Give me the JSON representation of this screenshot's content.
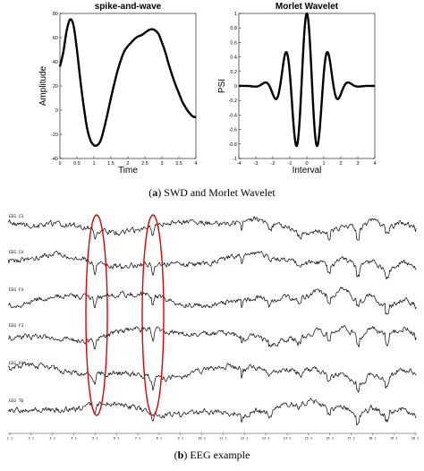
{
  "figure": {
    "caption_a": {
      "letter": "a",
      "text": "SWD and Morlet Wavelet"
    },
    "caption_b": {
      "letter": "b",
      "text": "EEG example"
    }
  },
  "chart_data": [
    {
      "type": "line",
      "title": "spike-and-wave",
      "xlabel": "Time",
      "ylabel": "Amplitude",
      "xlim": [
        0,
        4
      ],
      "ylim": [
        -40,
        80
      ],
      "xticks": [
        "0",
        "0.5",
        "1",
        "1.5",
        "2",
        "2.5",
        "3",
        "3.5",
        "4"
      ],
      "yticks": [
        "-40",
        "-20",
        "0",
        "20",
        "40",
        "60",
        "80"
      ],
      "grid": false,
      "series": [
        {
          "x": [
            0,
            0.1,
            0.2,
            0.3,
            0.4,
            0.5,
            0.6,
            0.7,
            0.8,
            0.9,
            1.0,
            1.1,
            1.2,
            1.3,
            1.4,
            1.5,
            1.6,
            1.7,
            1.8,
            1.9,
            2.0,
            2.1,
            2.2,
            2.3,
            2.4,
            2.5,
            2.6,
            2.7,
            2.8,
            2.9,
            3.0,
            3.1,
            3.2,
            3.3,
            3.4,
            3.5,
            3.6,
            3.7,
            3.8,
            3.9,
            4.0
          ],
          "y": [
            36,
            48,
            66,
            75,
            70,
            50,
            25,
            3,
            -15,
            -25,
            -29,
            -29,
            -25,
            -15,
            -3,
            10,
            22,
            33,
            42,
            49,
            53,
            56,
            59,
            61,
            62,
            64,
            66,
            67,
            66,
            63,
            56,
            48,
            38,
            29,
            21,
            14,
            7,
            2,
            -2,
            -5,
            -6
          ]
        }
      ]
    },
    {
      "type": "line",
      "title": "Morlet Wavelet",
      "xlabel": "Interval",
      "ylabel": "PSI",
      "xlim": [
        -4,
        4
      ],
      "ylim": [
        -1,
        1
      ],
      "xticks": [
        "-4",
        "-3",
        "-2",
        "-1",
        "0",
        "1",
        "2",
        "3",
        "4"
      ],
      "yticks": [
        "-1",
        "-0.8",
        "-0.6",
        "-0.4",
        "-0.2",
        "0",
        "0.2",
        "0.4",
        "0.6",
        "0.8",
        "1"
      ],
      "grid": false,
      "function": "exp(-x^2/2)*cos(5x)",
      "series": [
        {
          "x": [
            -4,
            -3.5,
            -3,
            -2.5,
            -2,
            -1.5,
            -1.25,
            -1,
            -0.8,
            -0.6,
            -0.4,
            -0.2,
            0,
            0.2,
            0.4,
            0.6,
            0.8,
            1,
            1.25,
            1.5,
            2,
            2.5,
            3,
            3.5,
            4
          ],
          "y": [
            0.0,
            0.0,
            -0.01,
            0.04,
            -0.11,
            0.11,
            0.46,
            0.17,
            -0.47,
            -0.83,
            -0.38,
            0.53,
            1.0,
            0.53,
            -0.38,
            -0.83,
            -0.47,
            0.17,
            0.46,
            0.11,
            -0.11,
            0.04,
            -0.01,
            0.0,
            0.0
          ]
        }
      ]
    },
    {
      "type": "line",
      "title": "",
      "channels": [
        "EEG C3",
        "EEG C4",
        "EEG F4",
        "EEG F3",
        "EEG P4",
        "EEG T6"
      ],
      "xticks": [
        "1 s",
        "2 s",
        "3 s",
        "4 s",
        "5 s",
        "6 s",
        "7 s",
        "8 s",
        "9 s",
        "10 s",
        "11 s",
        "12 s",
        "13 s",
        "14 s",
        "15 s",
        "16 s",
        "17 s",
        "18 s",
        "19 s",
        "20 s"
      ],
      "highlight_marks": [
        "red ellipse around spike near 4.2 s",
        "red ellipse around spike near 6.3 s"
      ],
      "grid": false
    }
  ],
  "colors": {
    "line": "#000000",
    "highlight": "#e00000",
    "caption_text": "#000000"
  }
}
